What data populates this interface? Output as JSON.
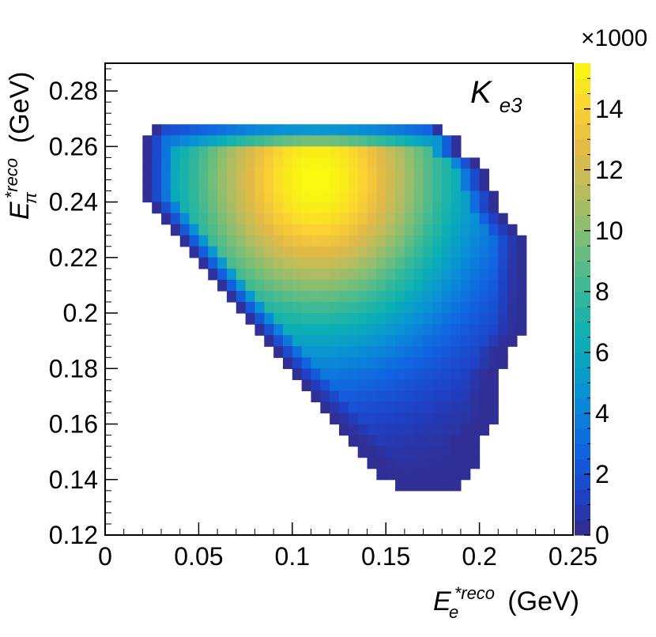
{
  "chart_data": {
    "type": "heatmap",
    "title": "",
    "annotation": {
      "main": "K",
      "sub": "e3"
    },
    "xlabel": {
      "main": "E",
      "sup": "*reco",
      "sub": "e",
      "unit": "(GeV)"
    },
    "ylabel": {
      "main": "E",
      "sup": "*reco",
      "sub": "π",
      "unit": "(GeV)"
    },
    "xlim": [
      0,
      0.25
    ],
    "ylim": [
      0.12,
      0.29
    ],
    "x_ticks": [
      "0",
      "0.05",
      "0.1",
      "0.15",
      "0.2",
      "0.25"
    ],
    "x_tick_values": [
      0,
      0.05,
      0.1,
      0.15,
      0.2,
      0.25
    ],
    "y_ticks": [
      "0.12",
      "0.14",
      "0.16",
      "0.18",
      "0.2",
      "0.22",
      "0.24",
      "0.26",
      "0.28"
    ],
    "y_tick_values": [
      0.12,
      0.14,
      0.16,
      0.18,
      0.2,
      0.22,
      0.24,
      0.26,
      0.28
    ],
    "colorbar": {
      "min": 0,
      "max": 15.5,
      "multiplier": "×1000",
      "tick_labels": [
        "0",
        "2",
        "4",
        "6",
        "8",
        "10",
        "12",
        "14"
      ],
      "tick_values": [
        0,
        2,
        4,
        6,
        8,
        10,
        12,
        14
      ]
    },
    "bins": {
      "x_width": 0.005,
      "y_width": 0.004
    },
    "density_model": {
      "peak_x": 0.113,
      "peak_y": 0.248,
      "peak_value": 15.5,
      "description": "Kinematically allowed region; counts in thousands, peaking near E_e≈0.11 GeV, E_π≈0.248 GeV"
    },
    "region_rows": [
      {
        "y": 0.266,
        "x_min": 0.025,
        "x_max": 0.18
      },
      {
        "y": 0.262,
        "x_min": 0.02,
        "x_max": 0.19
      },
      {
        "y": 0.258,
        "x_min": 0.02,
        "x_max": 0.19
      },
      {
        "y": 0.254,
        "x_min": 0.02,
        "x_max": 0.2
      },
      {
        "y": 0.25,
        "x_min": 0.02,
        "x_max": 0.205
      },
      {
        "y": 0.246,
        "x_min": 0.02,
        "x_max": 0.205
      },
      {
        "y": 0.242,
        "x_min": 0.02,
        "x_max": 0.21
      },
      {
        "y": 0.238,
        "x_min": 0.025,
        "x_max": 0.21
      },
      {
        "y": 0.234,
        "x_min": 0.03,
        "x_max": 0.215
      },
      {
        "y": 0.23,
        "x_min": 0.035,
        "x_max": 0.22
      },
      {
        "y": 0.226,
        "x_min": 0.04,
        "x_max": 0.225
      },
      {
        "y": 0.222,
        "x_min": 0.045,
        "x_max": 0.225
      },
      {
        "y": 0.218,
        "x_min": 0.05,
        "x_max": 0.225
      },
      {
        "y": 0.214,
        "x_min": 0.055,
        "x_max": 0.225
      },
      {
        "y": 0.21,
        "x_min": 0.06,
        "x_max": 0.225
      },
      {
        "y": 0.206,
        "x_min": 0.065,
        "x_max": 0.225
      },
      {
        "y": 0.202,
        "x_min": 0.07,
        "x_max": 0.225
      },
      {
        "y": 0.198,
        "x_min": 0.075,
        "x_max": 0.225
      },
      {
        "y": 0.194,
        "x_min": 0.08,
        "x_max": 0.225
      },
      {
        "y": 0.19,
        "x_min": 0.085,
        "x_max": 0.22
      },
      {
        "y": 0.186,
        "x_min": 0.09,
        "x_max": 0.215
      },
      {
        "y": 0.182,
        "x_min": 0.095,
        "x_max": 0.215
      },
      {
        "y": 0.178,
        "x_min": 0.1,
        "x_max": 0.21
      },
      {
        "y": 0.174,
        "x_min": 0.105,
        "x_max": 0.21
      },
      {
        "y": 0.17,
        "x_min": 0.11,
        "x_max": 0.21
      },
      {
        "y": 0.166,
        "x_min": 0.115,
        "x_max": 0.21
      },
      {
        "y": 0.162,
        "x_min": 0.12,
        "x_max": 0.21
      },
      {
        "y": 0.158,
        "x_min": 0.125,
        "x_max": 0.205
      },
      {
        "y": 0.154,
        "x_min": 0.13,
        "x_max": 0.2
      },
      {
        "y": 0.15,
        "x_min": 0.135,
        "x_max": 0.2
      },
      {
        "y": 0.146,
        "x_min": 0.14,
        "x_max": 0.2
      },
      {
        "y": 0.142,
        "x_min": 0.145,
        "x_max": 0.195
      },
      {
        "y": 0.138,
        "x_min": 0.155,
        "x_max": 0.19
      }
    ]
  }
}
